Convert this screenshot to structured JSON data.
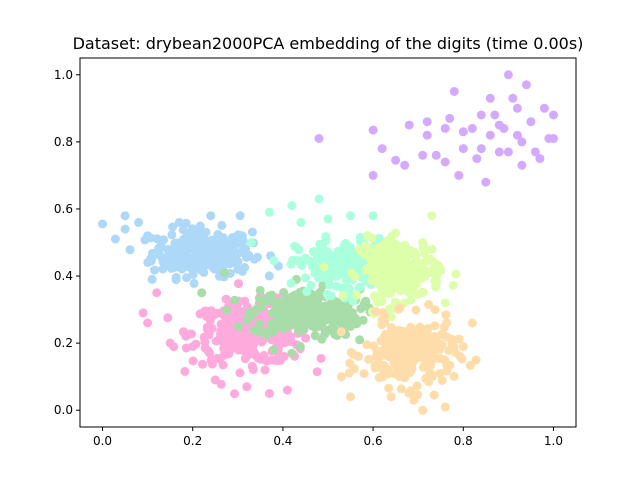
{
  "chart_data": {
    "type": "scatter",
    "title": "Dataset: drybean2000PCA embedding of the digits (time 0.00s)",
    "xlabel": "",
    "ylabel": "",
    "xlim": [
      -0.05,
      1.05
    ],
    "ylim": [
      -0.05,
      1.05
    ],
    "x_ticks": [
      "0.0",
      "0.2",
      "0.4",
      "0.6",
      "0.8",
      "1.0"
    ],
    "y_ticks": [
      "0.0",
      "0.2",
      "0.4",
      "0.6",
      "0.8",
      "1.0"
    ],
    "grid": false,
    "series": [
      {
        "color": "#add8f8",
        "center": [
          0.22,
          0.47
        ],
        "spread": [
          0.055,
          0.035
        ],
        "n": 260,
        "points": [
          [
            0.0,
            0.555
          ],
          [
            0.05,
            0.58
          ],
          [
            0.05,
            0.54
          ],
          [
            0.08,
            0.56
          ],
          [
            0.1,
            0.52
          ],
          [
            0.17,
            0.56
          ],
          [
            0.24,
            0.58
          ],
          [
            0.305,
            0.58
          ],
          [
            0.11,
            0.39
          ],
          [
            0.3,
            0.42
          ],
          [
            0.39,
            0.43
          ]
        ]
      },
      {
        "color": "#ffaadd",
        "center": [
          0.33,
          0.23
        ],
        "spread": [
          0.065,
          0.045
        ],
        "n": 300,
        "points": [
          [
            0.09,
            0.29
          ],
          [
            0.1,
            0.26
          ],
          [
            0.12,
            0.35
          ],
          [
            0.15,
            0.2
          ],
          [
            0.2,
            0.19
          ],
          [
            0.25,
            0.09
          ],
          [
            0.32,
            0.07
          ],
          [
            0.37,
            0.05
          ],
          [
            0.41,
            0.06
          ],
          [
            0.36,
            0.12
          ]
        ]
      },
      {
        "color": "#a8dca8",
        "center": [
          0.45,
          0.29
        ],
        "spread": [
          0.06,
          0.035
        ],
        "n": 260,
        "points": [
          [
            0.27,
            0.41
          ],
          [
            0.22,
            0.35
          ],
          [
            0.43,
            0.39
          ],
          [
            0.55,
            0.25
          ],
          [
            0.57,
            0.21
          ],
          [
            0.38,
            0.18
          ],
          [
            0.42,
            0.17
          ]
        ]
      },
      {
        "color": "#aaffdd",
        "center": [
          0.53,
          0.43
        ],
        "spread": [
          0.05,
          0.04
        ],
        "n": 180,
        "points": [
          [
            0.37,
            0.59
          ],
          [
            0.42,
            0.61
          ],
          [
            0.48,
            0.63
          ],
          [
            0.5,
            0.57
          ],
          [
            0.55,
            0.58
          ],
          [
            0.6,
            0.58
          ],
          [
            0.33,
            0.5
          ],
          [
            0.44,
            0.56
          ]
        ]
      },
      {
        "color": "#ddffaa",
        "center": [
          0.66,
          0.42
        ],
        "spread": [
          0.045,
          0.045
        ],
        "n": 180,
        "points": [
          [
            0.73,
            0.58
          ],
          [
            0.71,
            0.5
          ],
          [
            0.76,
            0.32
          ],
          [
            0.57,
            0.48
          ],
          [
            0.64,
            0.3
          ]
        ]
      },
      {
        "color": "#ffddaa",
        "center": [
          0.68,
          0.17
        ],
        "spread": [
          0.05,
          0.05
        ],
        "n": 240,
        "points": [
          [
            0.55,
            0.04
          ],
          [
            0.64,
            0.04
          ],
          [
            0.69,
            0.03
          ],
          [
            0.71,
            0.0
          ],
          [
            0.76,
            0.01
          ],
          [
            0.53,
            0.1
          ],
          [
            0.62,
            0.27
          ],
          [
            0.8,
            0.19
          ],
          [
            0.82,
            0.26
          ]
        ]
      },
      {
        "color": "#d4aaff",
        "center": [
          0.0,
          0.0
        ],
        "spread": [
          0.0,
          0.0
        ],
        "n": 0,
        "points": [
          [
            0.48,
            0.81
          ],
          [
            0.6,
            0.835
          ],
          [
            0.6,
            0.7
          ],
          [
            0.62,
            0.78
          ],
          [
            0.65,
            0.745
          ],
          [
            0.67,
            0.73
          ],
          [
            0.68,
            0.85
          ],
          [
            0.71,
            0.76
          ],
          [
            0.72,
            0.82
          ],
          [
            0.72,
            0.86
          ],
          [
            0.74,
            0.76
          ],
          [
            0.76,
            0.84
          ],
          [
            0.77,
            0.87
          ],
          [
            0.76,
            0.74
          ],
          [
            0.78,
            0.95
          ],
          [
            0.79,
            0.7
          ],
          [
            0.8,
            0.78
          ],
          [
            0.8,
            0.83
          ],
          [
            0.82,
            0.84
          ],
          [
            0.83,
            0.75
          ],
          [
            0.84,
            0.78
          ],
          [
            0.85,
            0.68
          ],
          [
            0.86,
            0.93
          ],
          [
            0.87,
            0.88
          ],
          [
            0.88,
            0.85
          ],
          [
            0.88,
            0.77
          ],
          [
            0.89,
            0.84
          ],
          [
            0.9,
            1.0
          ],
          [
            0.91,
            0.93
          ],
          [
            0.92,
            0.9
          ],
          [
            0.92,
            0.82
          ],
          [
            0.93,
            0.8
          ],
          [
            0.93,
            0.73
          ],
          [
            0.94,
            0.97
          ],
          [
            0.95,
            0.86
          ],
          [
            0.96,
            0.77
          ],
          [
            0.97,
            0.75
          ],
          [
            0.98,
            0.9
          ],
          [
            0.99,
            0.81
          ],
          [
            1.0,
            0.88
          ],
          [
            1.0,
            0.81
          ],
          [
            0.84,
            0.88
          ],
          [
            0.86,
            0.82
          ],
          [
            0.9,
            0.77
          ]
        ]
      }
    ]
  }
}
